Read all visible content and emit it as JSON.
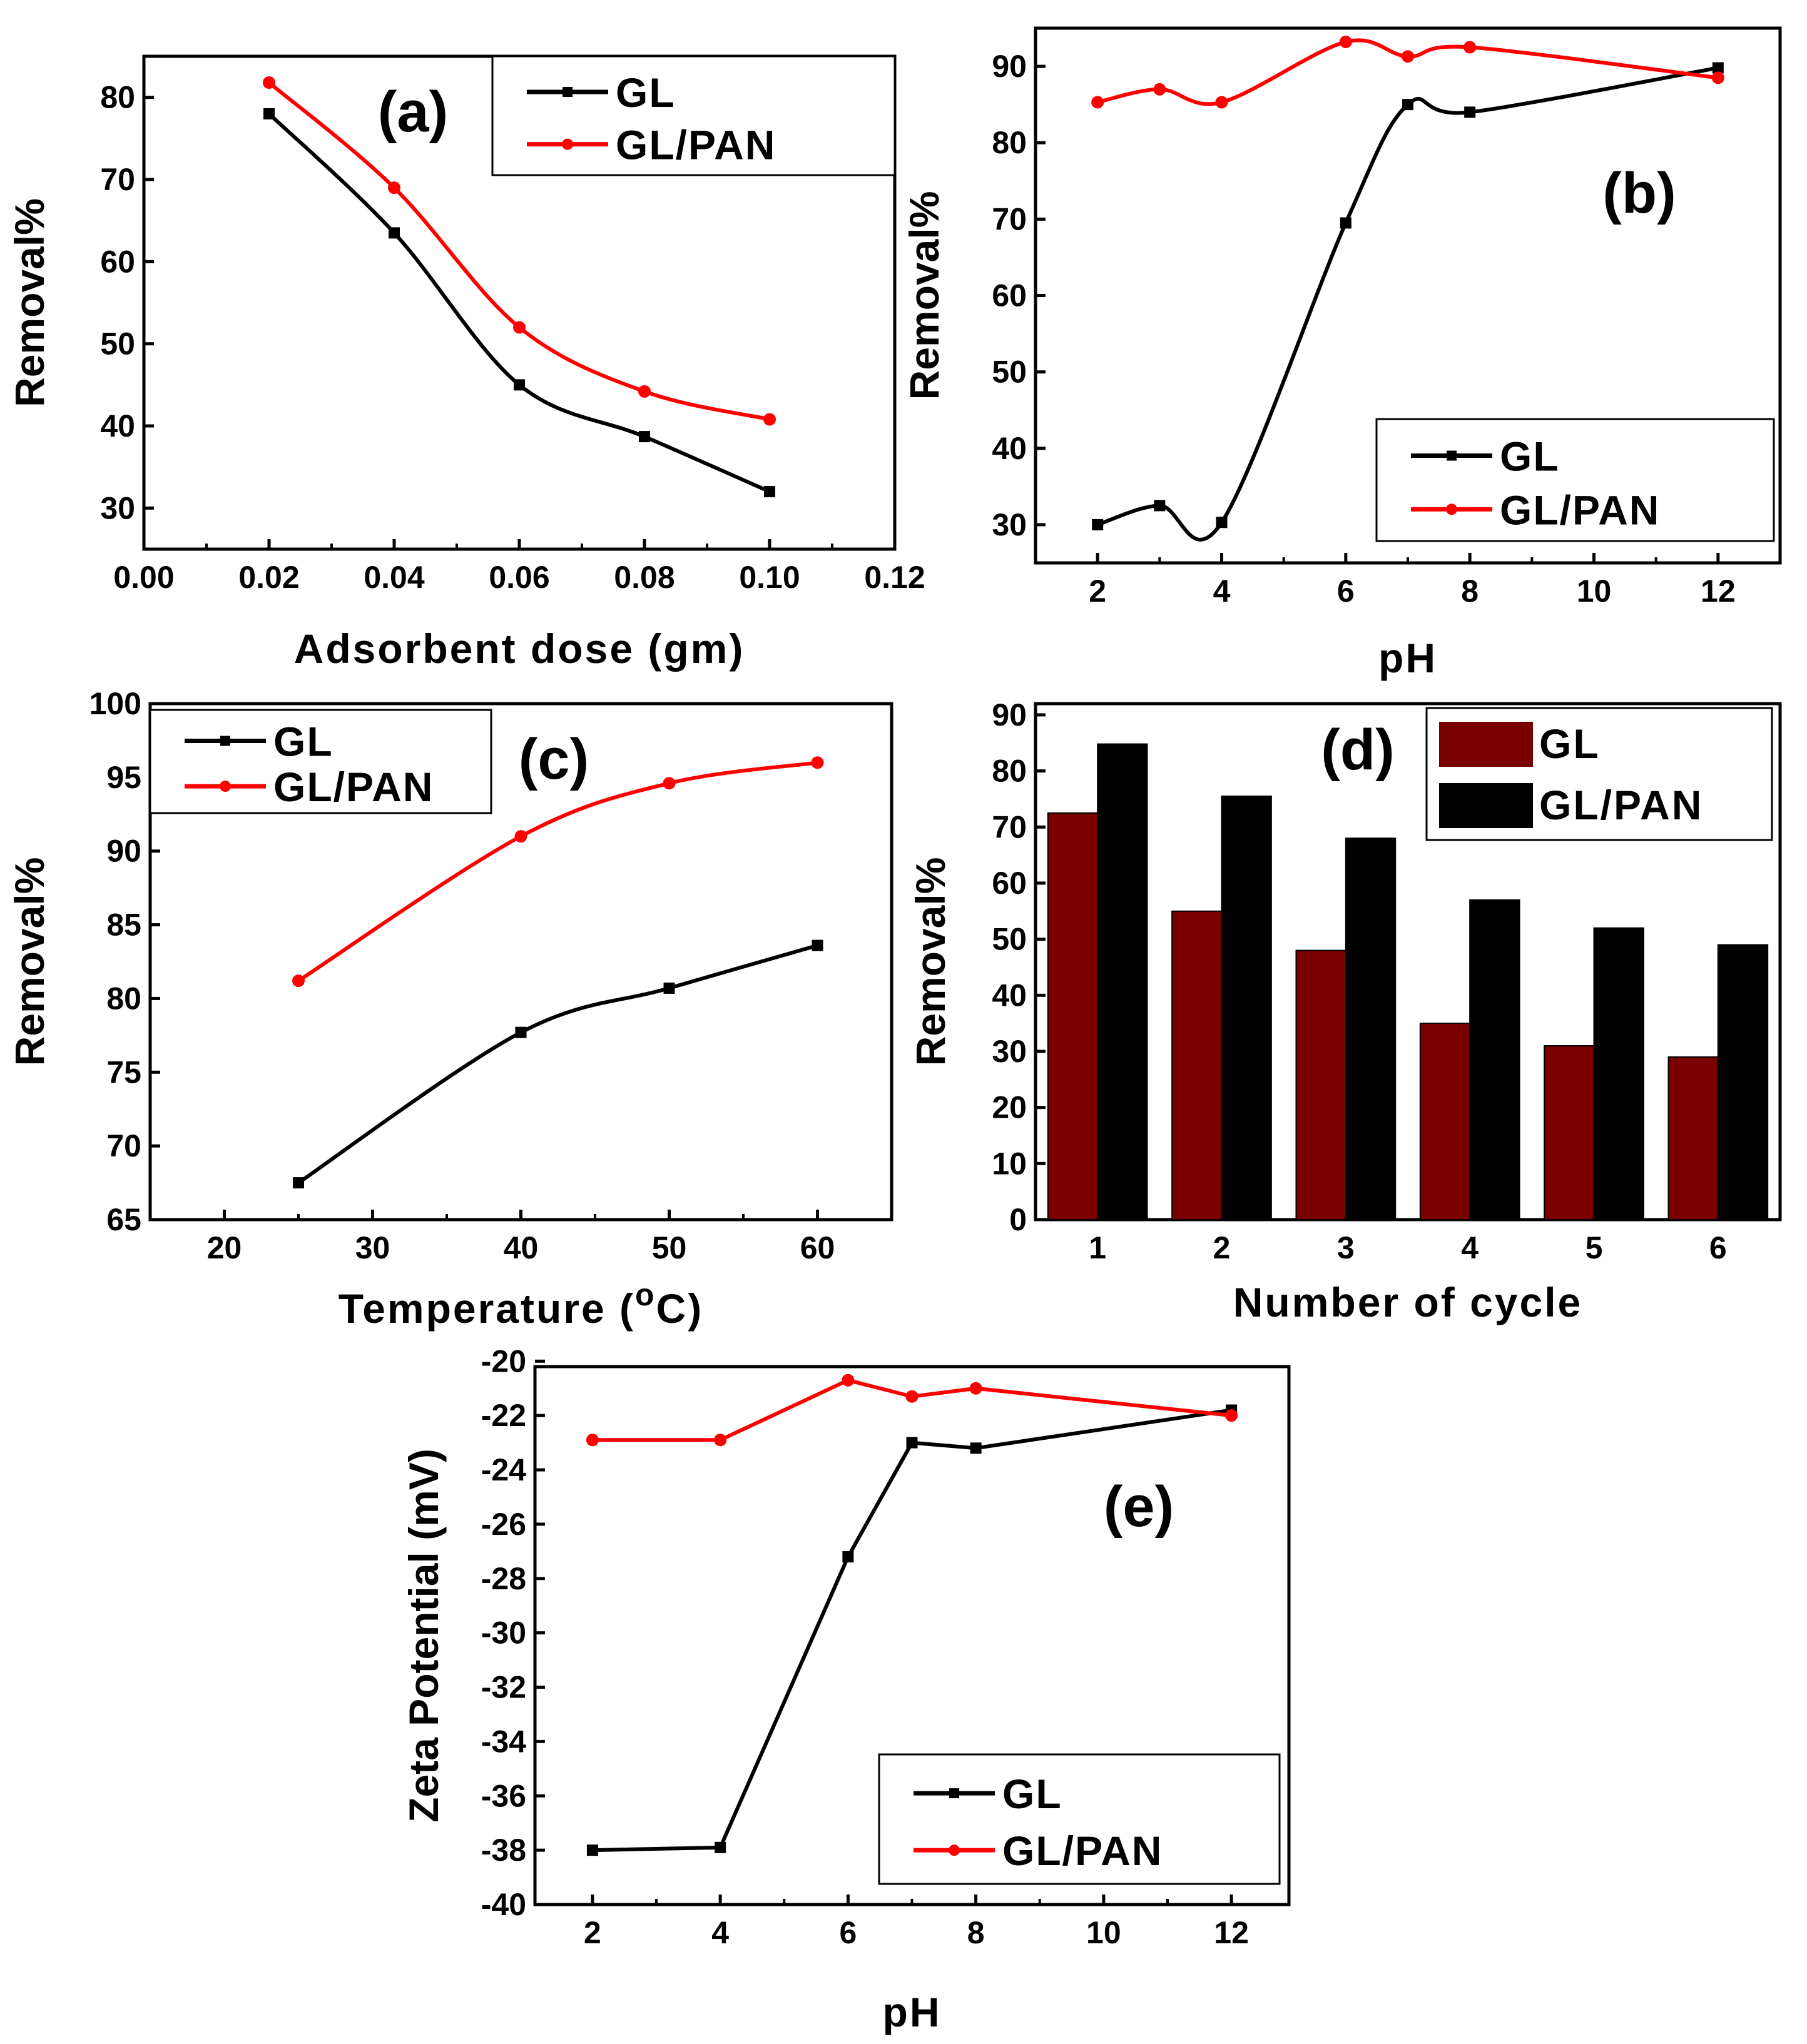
{
  "colors": {
    "gl_line": "#000000",
    "gl_pan_line": "#ff0000",
    "gl_bar": "#7a0000",
    "gl_pan_bar": "#000000"
  },
  "chart_data": [
    {
      "panel": "(a)",
      "type": "line",
      "xlabel": "Adsorbent dose (gm)",
      "ylabel": "Removal%",
      "xlim": [
        0.0,
        0.12
      ],
      "ylim": [
        25,
        85
      ],
      "xticks": [
        "0.00",
        "0.02",
        "0.04",
        "0.06",
        "0.08",
        "0.10",
        "0.12"
      ],
      "yticks": [
        "30",
        "40",
        "50",
        "60",
        "70",
        "80"
      ],
      "legend": [
        "GL",
        "GL/PAN"
      ],
      "legend_position": "top-right",
      "series": [
        {
          "name": "GL",
          "x": [
            0.02,
            0.04,
            0.06,
            0.08,
            0.1
          ],
          "values": [
            78,
            63.5,
            45,
            38.7,
            32
          ]
        },
        {
          "name": "GL/PAN",
          "x": [
            0.02,
            0.04,
            0.06,
            0.08,
            0.1
          ],
          "values": [
            81.8,
            69,
            52,
            44.2,
            40.8
          ]
        }
      ]
    },
    {
      "panel": "(b)",
      "type": "line",
      "xlabel": "pH",
      "ylabel": "Removal%",
      "xlim": [
        1,
        13
      ],
      "ylim": [
        25,
        95
      ],
      "xticks": [
        "2",
        "4",
        "6",
        "8",
        "10",
        "12"
      ],
      "yticks": [
        "30",
        "40",
        "50",
        "60",
        "70",
        "80",
        "90"
      ],
      "legend": [
        "GL",
        "GL/PAN"
      ],
      "legend_position": "bottom-right",
      "series": [
        {
          "name": "GL",
          "x": [
            2,
            3,
            4,
            6,
            7,
            8,
            12
          ],
          "values": [
            30,
            32.5,
            30.3,
            69.5,
            85,
            84,
            89.8
          ]
        },
        {
          "name": "GL/PAN",
          "x": [
            2,
            3,
            4,
            6,
            7,
            8,
            12
          ],
          "values": [
            85.3,
            87,
            85.3,
            93.2,
            91.3,
            92.5,
            88.5
          ]
        }
      ]
    },
    {
      "panel": "(c)",
      "type": "line",
      "xlabel": "Temperature (",
      "xlabel_sup": "o",
      "xlabel_end": "C)",
      "ylabel": "Removal%",
      "xlim": [
        15,
        65
      ],
      "ylim": [
        65,
        100
      ],
      "xticks": [
        "20",
        "30",
        "40",
        "50",
        "60"
      ],
      "yticks": [
        "65",
        "70",
        "75",
        "80",
        "85",
        "90",
        "95",
        "100"
      ],
      "legend": [
        "GL",
        "GL/PAN"
      ],
      "legend_position": "top-left",
      "series": [
        {
          "name": "GL",
          "x": [
            25,
            40,
            50,
            60
          ],
          "values": [
            67.5,
            77.7,
            80.7,
            83.6
          ]
        },
        {
          "name": "GL/PAN",
          "x": [
            25,
            40,
            50,
            60
          ],
          "values": [
            81.2,
            91,
            94.6,
            96
          ]
        }
      ]
    },
    {
      "panel": "(d)",
      "type": "bar",
      "xlabel": "Number of cycle",
      "ylabel": "Removal%",
      "categories": [
        "1",
        "2",
        "3",
        "4",
        "5",
        "6"
      ],
      "ylim": [
        0,
        92
      ],
      "yticks": [
        "0",
        "10",
        "20",
        "30",
        "40",
        "50",
        "60",
        "70",
        "80",
        "90"
      ],
      "legend": [
        "GL",
        "GL/PAN"
      ],
      "legend_position": "top-right",
      "series": [
        {
          "name": "GL",
          "values": [
            72.5,
            55,
            48,
            35,
            31,
            29
          ]
        },
        {
          "name": "GL/PAN",
          "values": [
            84.8,
            75.5,
            68,
            57,
            52,
            49
          ]
        }
      ]
    },
    {
      "panel": "(e)",
      "type": "line",
      "xlabel": "pH",
      "ylabel": "Zeta Potential (mV)",
      "xlim": [
        1.1,
        12.9
      ],
      "ylim": [
        -40,
        -20.2
      ],
      "xticks": [
        "2",
        "4",
        "6",
        "8",
        "10",
        "12"
      ],
      "yticks": [
        "-20",
        "-22",
        "-24",
        "-26",
        "-28",
        "-30",
        "-32",
        "-34",
        "-36",
        "-38",
        "-40"
      ],
      "legend": [
        "GL",
        "GL/PAN"
      ],
      "legend_position": "bottom-right",
      "series": [
        {
          "name": "GL",
          "x": [
            2,
            4,
            6,
            7,
            8,
            12
          ],
          "values": [
            -38,
            -37.9,
            -27.2,
            -23,
            -23.2,
            -21.8
          ]
        },
        {
          "name": "GL/PAN",
          "x": [
            2,
            4,
            6,
            7,
            8,
            12
          ],
          "values": [
            -22.9,
            -22.9,
            -20.7,
            -21.3,
            -21,
            -22
          ]
        }
      ]
    }
  ]
}
